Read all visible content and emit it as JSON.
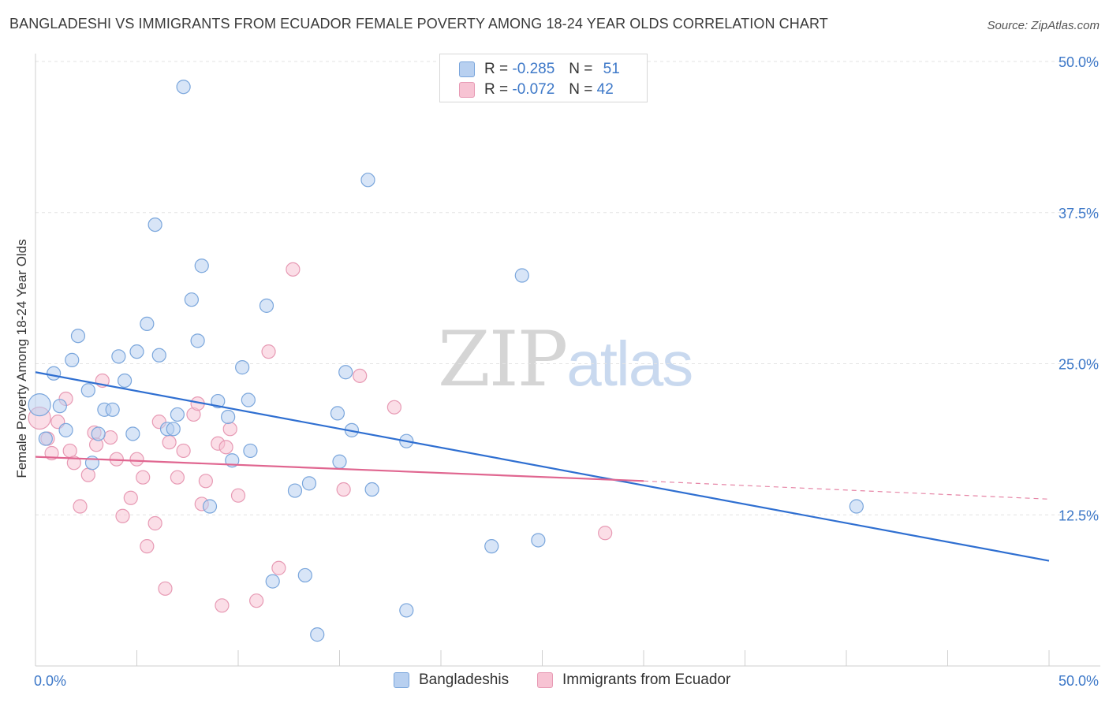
{
  "title": "BANGLADESHI VS IMMIGRANTS FROM ECUADOR FEMALE POVERTY AMONG 18-24 YEAR OLDS CORRELATION CHART",
  "source": "Source: ZipAtlas.com",
  "watermark": {
    "zip": "ZIP",
    "atlas": "atlas"
  },
  "legend": {
    "r_label": "R =",
    "n_label": "N =",
    "rows": [
      {
        "r": "-0.285",
        "n": "51"
      },
      {
        "r": "-0.072",
        "n": "42"
      }
    ]
  },
  "colors": {
    "blue_fill": "#b8d0f0",
    "blue_stroke": "#7aa6dc",
    "blue_line": "#2f6fd1",
    "pink_fill": "#f7c3d3",
    "pink_stroke": "#e79ab4",
    "pink_line": "#e06690",
    "tick_text": "#3d78c8",
    "grid": "#e3e3e3"
  },
  "chart_data": {
    "type": "scatter",
    "title": "BANGLADESHI VS IMMIGRANTS FROM ECUADOR FEMALE POVERTY AMONG 18-24 YEAR OLDS CORRELATION CHART",
    "xlabel": "",
    "ylabel": "Female Poverty Among 18-24 Year Olds",
    "xlim": [
      0,
      50
    ],
    "ylim": [
      0,
      50
    ],
    "x_tick_labels": [
      "0.0%",
      "50.0%"
    ],
    "y_ticks": [
      12.5,
      25.0,
      37.5,
      50.0
    ],
    "y_tick_labels": [
      "12.5%",
      "25.0%",
      "37.5%",
      "50.0%"
    ],
    "grid": true,
    "legend_position": "top-center",
    "series": [
      {
        "name": "Bangladeshis",
        "r": -0.285,
        "n": 51,
        "trend": {
          "x": [
            0,
            50
          ],
          "y": [
            24.3,
            8.7
          ]
        },
        "points": [
          [
            0.2,
            21.6
          ],
          [
            0.5,
            18.8
          ],
          [
            0.9,
            24.2
          ],
          [
            1.2,
            21.5
          ],
          [
            1.5,
            19.5
          ],
          [
            1.8,
            25.3
          ],
          [
            2.1,
            27.3
          ],
          [
            2.6,
            22.8
          ],
          [
            2.8,
            16.8
          ],
          [
            3.1,
            19.2
          ],
          [
            3.4,
            21.2
          ],
          [
            3.8,
            21.2
          ],
          [
            4.1,
            25.6
          ],
          [
            4.4,
            23.6
          ],
          [
            4.8,
            19.2
          ],
          [
            5.0,
            26.0
          ],
          [
            5.5,
            28.3
          ],
          [
            5.9,
            36.5
          ],
          [
            6.1,
            25.7
          ],
          [
            6.5,
            19.6
          ],
          [
            6.8,
            19.6
          ],
          [
            7.0,
            20.8
          ],
          [
            7.3,
            47.9
          ],
          [
            7.7,
            30.3
          ],
          [
            8.0,
            26.9
          ],
          [
            8.2,
            33.1
          ],
          [
            8.6,
            13.2
          ],
          [
            9.0,
            21.9
          ],
          [
            9.5,
            20.6
          ],
          [
            9.7,
            17.0
          ],
          [
            10.2,
            24.7
          ],
          [
            10.5,
            22.0
          ],
          [
            10.6,
            17.8
          ],
          [
            11.4,
            29.8
          ],
          [
            11.7,
            7.0
          ],
          [
            12.8,
            14.5
          ],
          [
            13.5,
            15.1
          ],
          [
            13.9,
            2.6
          ],
          [
            13.3,
            7.5
          ],
          [
            14.9,
            20.9
          ],
          [
            15.0,
            16.9
          ],
          [
            15.3,
            24.3
          ],
          [
            15.6,
            19.5
          ],
          [
            16.4,
            40.2
          ],
          [
            16.6,
            14.6
          ],
          [
            18.3,
            18.6
          ],
          [
            18.3,
            4.6
          ],
          [
            22.5,
            9.9
          ],
          [
            24.0,
            32.3
          ],
          [
            24.8,
            10.4
          ],
          [
            40.5,
            13.2
          ]
        ]
      },
      {
        "name": "Immigrants from Ecuador",
        "r": -0.072,
        "n": 42,
        "trend": {
          "x": [
            0,
            30
          ],
          "y": [
            17.3,
            15.3
          ]
        },
        "trend_dashed": {
          "x": [
            30,
            50
          ],
          "y": [
            15.3,
            13.8
          ]
        },
        "points": [
          [
            0.2,
            20.5
          ],
          [
            0.6,
            18.8
          ],
          [
            0.8,
            17.6
          ],
          [
            1.1,
            20.2
          ],
          [
            1.5,
            22.1
          ],
          [
            1.7,
            17.8
          ],
          [
            1.9,
            16.8
          ],
          [
            2.2,
            13.2
          ],
          [
            2.6,
            15.8
          ],
          [
            2.9,
            19.3
          ],
          [
            3.0,
            18.3
          ],
          [
            3.3,
            23.6
          ],
          [
            3.7,
            18.9
          ],
          [
            4.0,
            17.1
          ],
          [
            4.3,
            12.4
          ],
          [
            4.7,
            13.9
          ],
          [
            5.0,
            17.1
          ],
          [
            5.3,
            15.6
          ],
          [
            5.5,
            9.9
          ],
          [
            5.9,
            11.8
          ],
          [
            6.1,
            20.2
          ],
          [
            6.4,
            6.4
          ],
          [
            6.6,
            18.5
          ],
          [
            7.0,
            15.6
          ],
          [
            7.3,
            17.8
          ],
          [
            7.8,
            20.8
          ],
          [
            8.0,
            21.7
          ],
          [
            8.2,
            13.4
          ],
          [
            8.4,
            15.3
          ],
          [
            9.0,
            18.4
          ],
          [
            9.2,
            5.0
          ],
          [
            9.4,
            18.1
          ],
          [
            9.6,
            19.6
          ],
          [
            10.0,
            14.1
          ],
          [
            10.9,
            5.4
          ],
          [
            11.5,
            26.0
          ],
          [
            12.0,
            8.1
          ],
          [
            12.7,
            32.8
          ],
          [
            15.2,
            14.6
          ],
          [
            16.0,
            24.0
          ],
          [
            17.7,
            21.4
          ],
          [
            28.1,
            11.0
          ]
        ]
      }
    ]
  }
}
